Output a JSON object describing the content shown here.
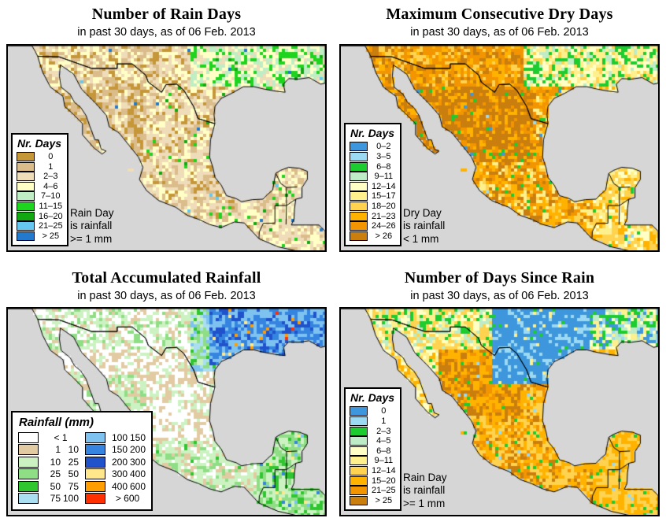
{
  "panels": [
    {
      "id": "rain-days",
      "title": "Number of Rain Days",
      "subtitle": "in past 30 days, as of 06 Feb. 2013",
      "legend": {
        "title": "Nr. Days",
        "columns": 1,
        "rows": [
          {
            "color": "#C69738",
            "parts": [
              "0"
            ]
          },
          {
            "color": "#DBBD8C",
            "parts": [
              "1"
            ]
          },
          {
            "color": "#EFDCB9",
            "parts": [
              "2–3"
            ]
          },
          {
            "color": "#FFFFC6",
            "parts": [
              "4–6"
            ]
          },
          {
            "color": "#BFEDC4",
            "parts": [
              "7–10"
            ]
          },
          {
            "color": "#1ED41E",
            "parts": [
              "11–15"
            ]
          },
          {
            "color": "#12A812",
            "parts": [
              "16–20"
            ]
          },
          {
            "color": "#66C8F0",
            "parts": [
              "21–25"
            ]
          },
          {
            "color": "#2379CB",
            "parts": [
              "> 25"
            ]
          }
        ]
      },
      "note": [
        "Rain Day",
        "is rainfall",
        ">= 1 mm"
      ],
      "map": {
        "ocean_color": "#D6D6D6",
        "outline_color": "#000000"
      }
    },
    {
      "id": "max-consecutive-dry-days",
      "title": "Maximum Consecutive Dry Days",
      "subtitle": "in past 30 days, as of 06 Feb. 2013",
      "legend": {
        "title": "Nr. Days",
        "columns": 1,
        "rows": [
          {
            "color": "#3E97DC",
            "parts": [
              "0–2"
            ]
          },
          {
            "color": "#9CD9F2",
            "parts": [
              "3–5"
            ]
          },
          {
            "color": "#1DCC2E",
            "parts": [
              "6–8"
            ]
          },
          {
            "color": "#BEECC6",
            "parts": [
              "9–11"
            ]
          },
          {
            "color": "#FFFFC6",
            "parts": [
              "12–14"
            ]
          },
          {
            "color": "#FFF08E",
            "parts": [
              "15–17"
            ]
          },
          {
            "color": "#FFD34F",
            "parts": [
              "18–20"
            ]
          },
          {
            "color": "#FFB300",
            "parts": [
              "21–23"
            ]
          },
          {
            "color": "#F29500",
            "parts": [
              "24–26"
            ]
          },
          {
            "color": "#C97E0E",
            "parts": [
              "> 26"
            ]
          }
        ]
      },
      "note": [
        "Dry Day",
        "is rainfall",
        "< 1 mm"
      ],
      "map": {
        "ocean_color": "#D6D6D6",
        "outline_color": "#000000"
      }
    },
    {
      "id": "total-accumulated-rainfall",
      "title": "Total Accumulated Rainfall",
      "subtitle": "in past 30 days, as of 06 Feb. 2013",
      "legend": {
        "title": "Rainfall (mm)",
        "columns": 2,
        "rows": [
          {
            "color": "#FFFFFF",
            "parts": [
              "< 1"
            ]
          },
          {
            "color": "#E2CBA2",
            "parts": [
              "1",
              "10"
            ]
          },
          {
            "color": "#CCF2C2",
            "parts": [
              "10",
              "25"
            ]
          },
          {
            "color": "#8FDE86",
            "parts": [
              "25",
              "50"
            ]
          },
          {
            "color": "#2FC62F",
            "parts": [
              "50",
              "75"
            ]
          },
          {
            "color": "#AADFF2",
            "parts": [
              "75",
              "100"
            ]
          },
          {
            "color": "#7EC2F0",
            "parts": [
              "100",
              "150"
            ]
          },
          {
            "color": "#3585E0",
            "parts": [
              "150",
              "200"
            ]
          },
          {
            "color": "#2052CC",
            "parts": [
              "200",
              "300"
            ]
          },
          {
            "color": "#FFE88C",
            "parts": [
              "300",
              "400"
            ]
          },
          {
            "color": "#FF9E00",
            "parts": [
              "400",
              "600"
            ]
          },
          {
            "color": "#FF2F00",
            "parts": [
              "> 600"
            ]
          }
        ]
      },
      "note": [],
      "map": {
        "ocean_color": "#D6D6D6",
        "outline_color": "#000000"
      }
    },
    {
      "id": "days-since-rain",
      "title": "Number of Days Since Rain",
      "subtitle": "in past 30 days, as of 06 Feb. 2013",
      "legend": {
        "title": "Nr. Days",
        "columns": 1,
        "rows": [
          {
            "color": "#3E97DC",
            "parts": [
              "0"
            ]
          },
          {
            "color": "#9CD9F2",
            "parts": [
              "1"
            ]
          },
          {
            "color": "#1DCC2E",
            "parts": [
              "2–3"
            ]
          },
          {
            "color": "#BEECC6",
            "parts": [
              "4–5"
            ]
          },
          {
            "color": "#FFFFC6",
            "parts": [
              "6–8"
            ]
          },
          {
            "color": "#FFF08E",
            "parts": [
              "9–11"
            ]
          },
          {
            "color": "#FFD34F",
            "parts": [
              "12–14"
            ]
          },
          {
            "color": "#FFB300",
            "parts": [
              "15–20"
            ]
          },
          {
            "color": "#F29500",
            "parts": [
              "21–25"
            ]
          },
          {
            "color": "#C97E0E",
            "parts": [
              "> 25"
            ]
          }
        ]
      },
      "note": [
        "Rain Day",
        "is rainfall",
        ">= 1 mm"
      ],
      "map": {
        "ocean_color": "#D6D6D6",
        "outline_color": "#000000"
      }
    }
  ]
}
